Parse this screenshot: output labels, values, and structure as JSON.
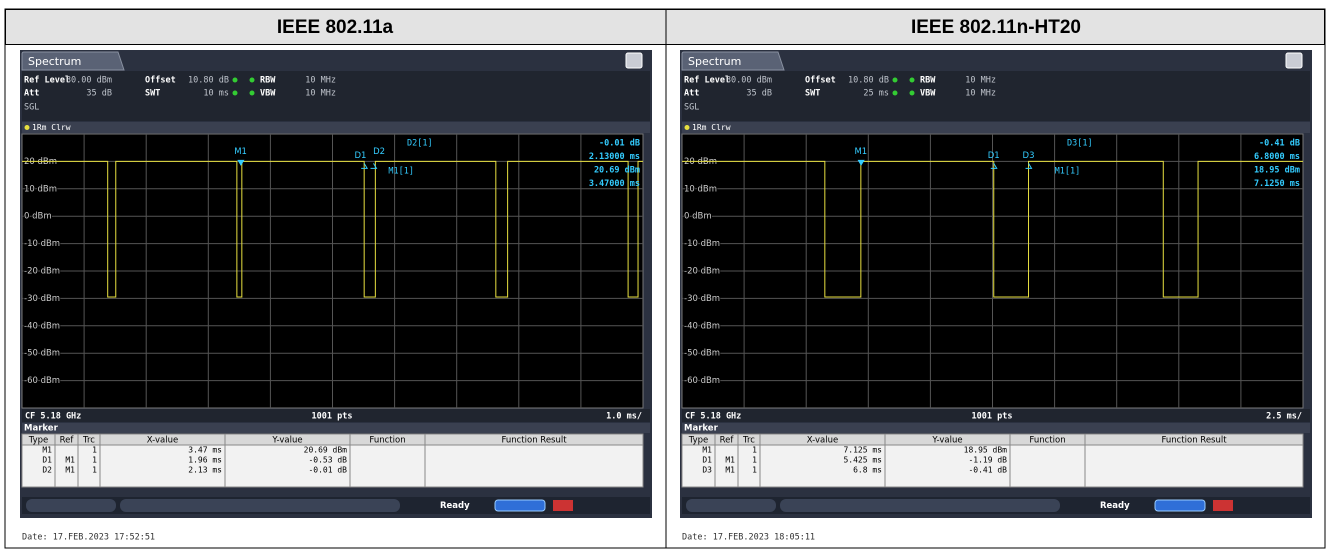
{
  "titles": [
    "IEEE 802.11a",
    "IEEE 802.11n-HT20"
  ],
  "panels": [
    {
      "tab": "Spectrum",
      "settings": [
        {
          "label": "Ref Level",
          "value": "30.00 dBm"
        },
        {
          "label": "Offset",
          "value": "10.80 dB"
        },
        {
          "label": "RBW",
          "value": "10 MHz"
        },
        {
          "label": "Att",
          "value": "35 dB"
        },
        {
          "label": "SWT",
          "value": "10 ms"
        },
        {
          "label": "VBW",
          "value": "10 MHz"
        }
      ],
      "mode": "SGL",
      "trace_label": "1Rm Clrw",
      "y_labels": [
        "20 dBm",
        "10 dBm",
        "0 dBm",
        "-10 dBm",
        "-20 dBm",
        "-30 dBm",
        "-40 dBm",
        "-50 dBm",
        "-60 dBm"
      ],
      "markers": [
        "M1",
        "D1",
        "D2"
      ],
      "readout_names": [
        "D2[1]",
        "M1[1]"
      ],
      "readout": [
        "-0.01 dB",
        "2.13000 ms",
        "20.69 dBm",
        "3.47000 ms"
      ],
      "footer": [
        "CF 5.18 GHz",
        "1001 pts",
        "1.0 ms/"
      ],
      "table_title": "Marker",
      "table_header": [
        "Type",
        "Ref",
        "Trc",
        "X-value",
        "Y-value",
        "Function",
        "Function Result"
      ],
      "rows": [
        {
          "type": "M1",
          "trc": "1",
          "x": "3.47 ms",
          "y": "20.69 dBm"
        },
        {
          "type": "D1",
          "ref": "M1",
          "trc": "1",
          "x": "1.96 ms",
          "y": "-0.53 dB"
        },
        {
          "type": "D2",
          "ref": "M1",
          "trc": "1",
          "x": "2.13 ms",
          "y": "-0.01 dB"
        }
      ],
      "status": "Ready",
      "date": "Date: 17.FEB.2023  17:52:51"
    },
    {
      "tab": "Spectrum",
      "settings": [
        {
          "label": "Ref Level",
          "value": "30.00 dBm"
        },
        {
          "label": "Offset",
          "value": "10.80 dB"
        },
        {
          "label": "RBW",
          "value": "10 MHz"
        },
        {
          "label": "Att",
          "value": "35 dB"
        },
        {
          "label": "SWT",
          "value": "25 ms"
        },
        {
          "label": "VBW",
          "value": "10 MHz"
        }
      ],
      "mode": "SGL",
      "trace_label": "1Rm Clrw",
      "y_labels": [
        "20 dBm",
        "10 dBm",
        "0 dBm",
        "-10 dBm",
        "-20 dBm",
        "-30 dBm",
        "-40 dBm",
        "-50 dBm",
        "-60 dBm"
      ],
      "markers": [
        "M1",
        "D1",
        "D3"
      ],
      "readout_names": [
        "D3[1]",
        "M1[1]"
      ],
      "readout": [
        "-0.41 dB",
        "6.8000 ms",
        "18.95 dBm",
        "7.1250 ms"
      ],
      "footer": [
        "CF 5.18 GHz",
        "1001 pts",
        "2.5 ms/"
      ],
      "table_title": "Marker",
      "table_header": [
        "Type",
        "Ref",
        "Trc",
        "X-value",
        "Y-value",
        "Function",
        "Function Result"
      ],
      "rows": [
        {
          "type": "M1",
          "trc": "1",
          "x": "7.125 ms",
          "y": "18.95 dBm"
        },
        {
          "type": "D1",
          "ref": "M1",
          "trc": "1",
          "x": "5.425 ms",
          "y": "-1.19 dB"
        },
        {
          "type": "D3",
          "ref": "M1",
          "trc": "1",
          "x": "6.8 ms",
          "y": "-0.41 dB"
        }
      ],
      "status": "Ready",
      "date": "Date: 17.FEB.2023  18:05:11"
    }
  ]
}
